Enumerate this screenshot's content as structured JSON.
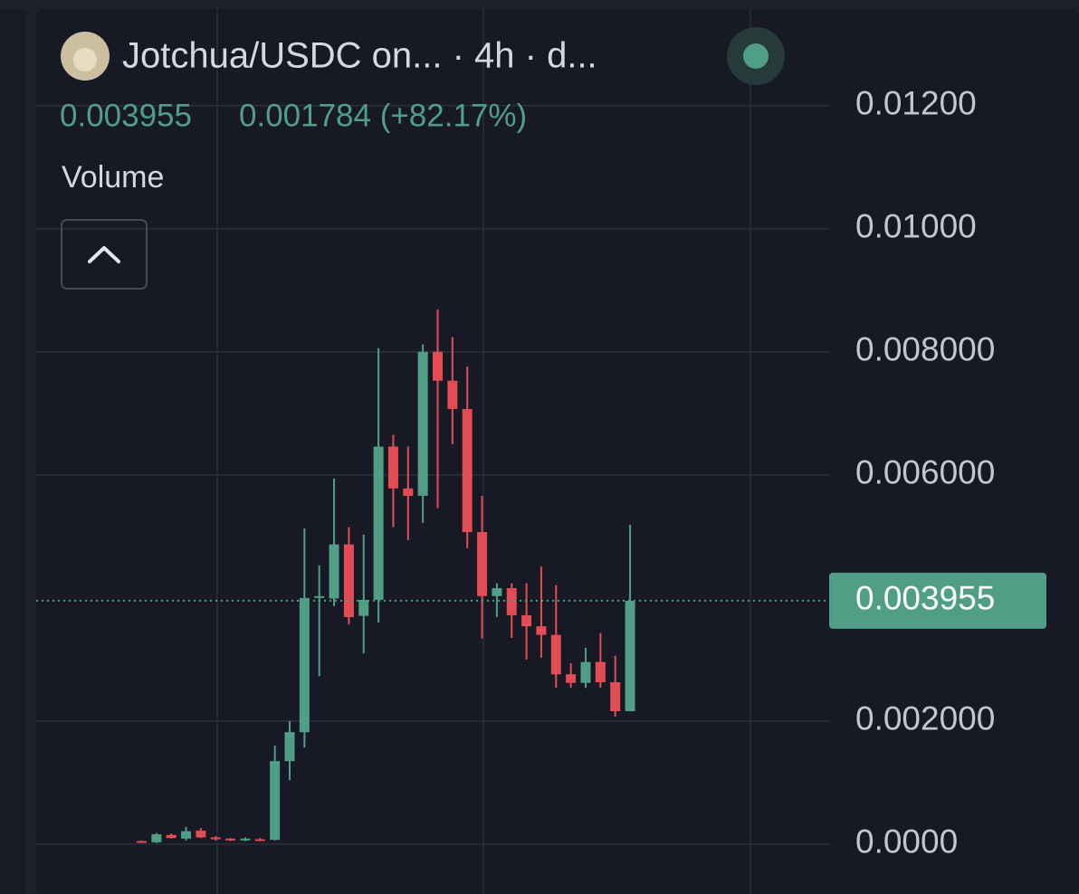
{
  "chart_data": {
    "type": "candlestick",
    "title": "Jotchua/USDC on... · 4h · d...",
    "change": "0.001784 (+82.17%)",
    "indicator": "Volume",
    "current_price": {
      "value": 0.003955,
      "label": "0.003955"
    },
    "up_color": "#4f9e85",
    "down_color": "#e44c55",
    "grid": true,
    "ylim": [
      -0.00081,
      0.01357
    ],
    "yticks": [
      {
        "value": 0,
        "label": "0.0000"
      },
      {
        "value": 0.002,
        "label": "0.002000"
      },
      {
        "value": 0.006,
        "label": "0.006000"
      },
      {
        "value": 0.008,
        "label": "0.008000"
      },
      {
        "value": 0.01,
        "label": "0.01000"
      },
      {
        "value": 0.012,
        "label": "0.01200"
      }
    ],
    "open": [
      5e-05,
      3e-05,
      0.00015,
      9e-05,
      0.00022,
      0.00011,
      9e-05,
      8e-05,
      8e-05,
      7e-05,
      0.00135,
      0.00182,
      0.004,
      0.00399,
      0.00487,
      0.00371,
      0.00397,
      0.00646,
      0.00578,
      0.00566,
      0.008,
      0.00753,
      0.00707,
      0.00507,
      0.00403,
      0.00416,
      0.00372,
      0.00354,
      0.0034,
      0.00276,
      0.00262,
      0.00296,
      0.00263,
      0.00216
    ],
    "high": [
      6e-05,
      0.00018,
      0.00017,
      0.00028,
      0.00026,
      0.00013,
      0.0001,
      0.00011,
      0.0001,
      0.0016,
      0.002,
      0.00513,
      0.00453,
      0.00594,
      0.00515,
      0.00503,
      0.00806,
      0.00665,
      0.00646,
      0.00812,
      0.00869,
      0.00824,
      0.00776,
      0.00566,
      0.00424,
      0.00424,
      0.00424,
      0.00451,
      0.00421,
      0.00294,
      0.00319,
      0.00343,
      0.00306,
      0.00519
    ],
    "low": [
      2e-05,
      2e-05,
      9e-05,
      6e-05,
      0.0001,
      6e-05,
      5e-05,
      5e-05,
      5e-05,
      6e-05,
      0.00104,
      0.00157,
      0.00273,
      0.00387,
      0.00357,
      0.0031,
      0.0036,
      0.00515,
      0.00494,
      0.00522,
      0.00546,
      0.0065,
      0.00481,
      0.00334,
      0.00369,
      0.00335,
      0.003,
      0.00303,
      0.00254,
      0.00254,
      0.00254,
      0.00254,
      0.00207,
      0.00216
    ],
    "close": [
      4e-05,
      0.00016,
      0.0001,
      0.00021,
      0.00011,
      8e-05,
      8e-05,
      9e-05,
      7e-05,
      0.00135,
      0.00182,
      0.004,
      0.00403,
      0.00487,
      0.00369,
      0.00397,
      0.00646,
      0.00578,
      0.00566,
      0.008,
      0.00753,
      0.00707,
      0.00507,
      0.00403,
      0.00416,
      0.00372,
      0.00354,
      0.0034,
      0.00276,
      0.00262,
      0.00296,
      0.00263,
      0.00216,
      0.003955
    ]
  }
}
